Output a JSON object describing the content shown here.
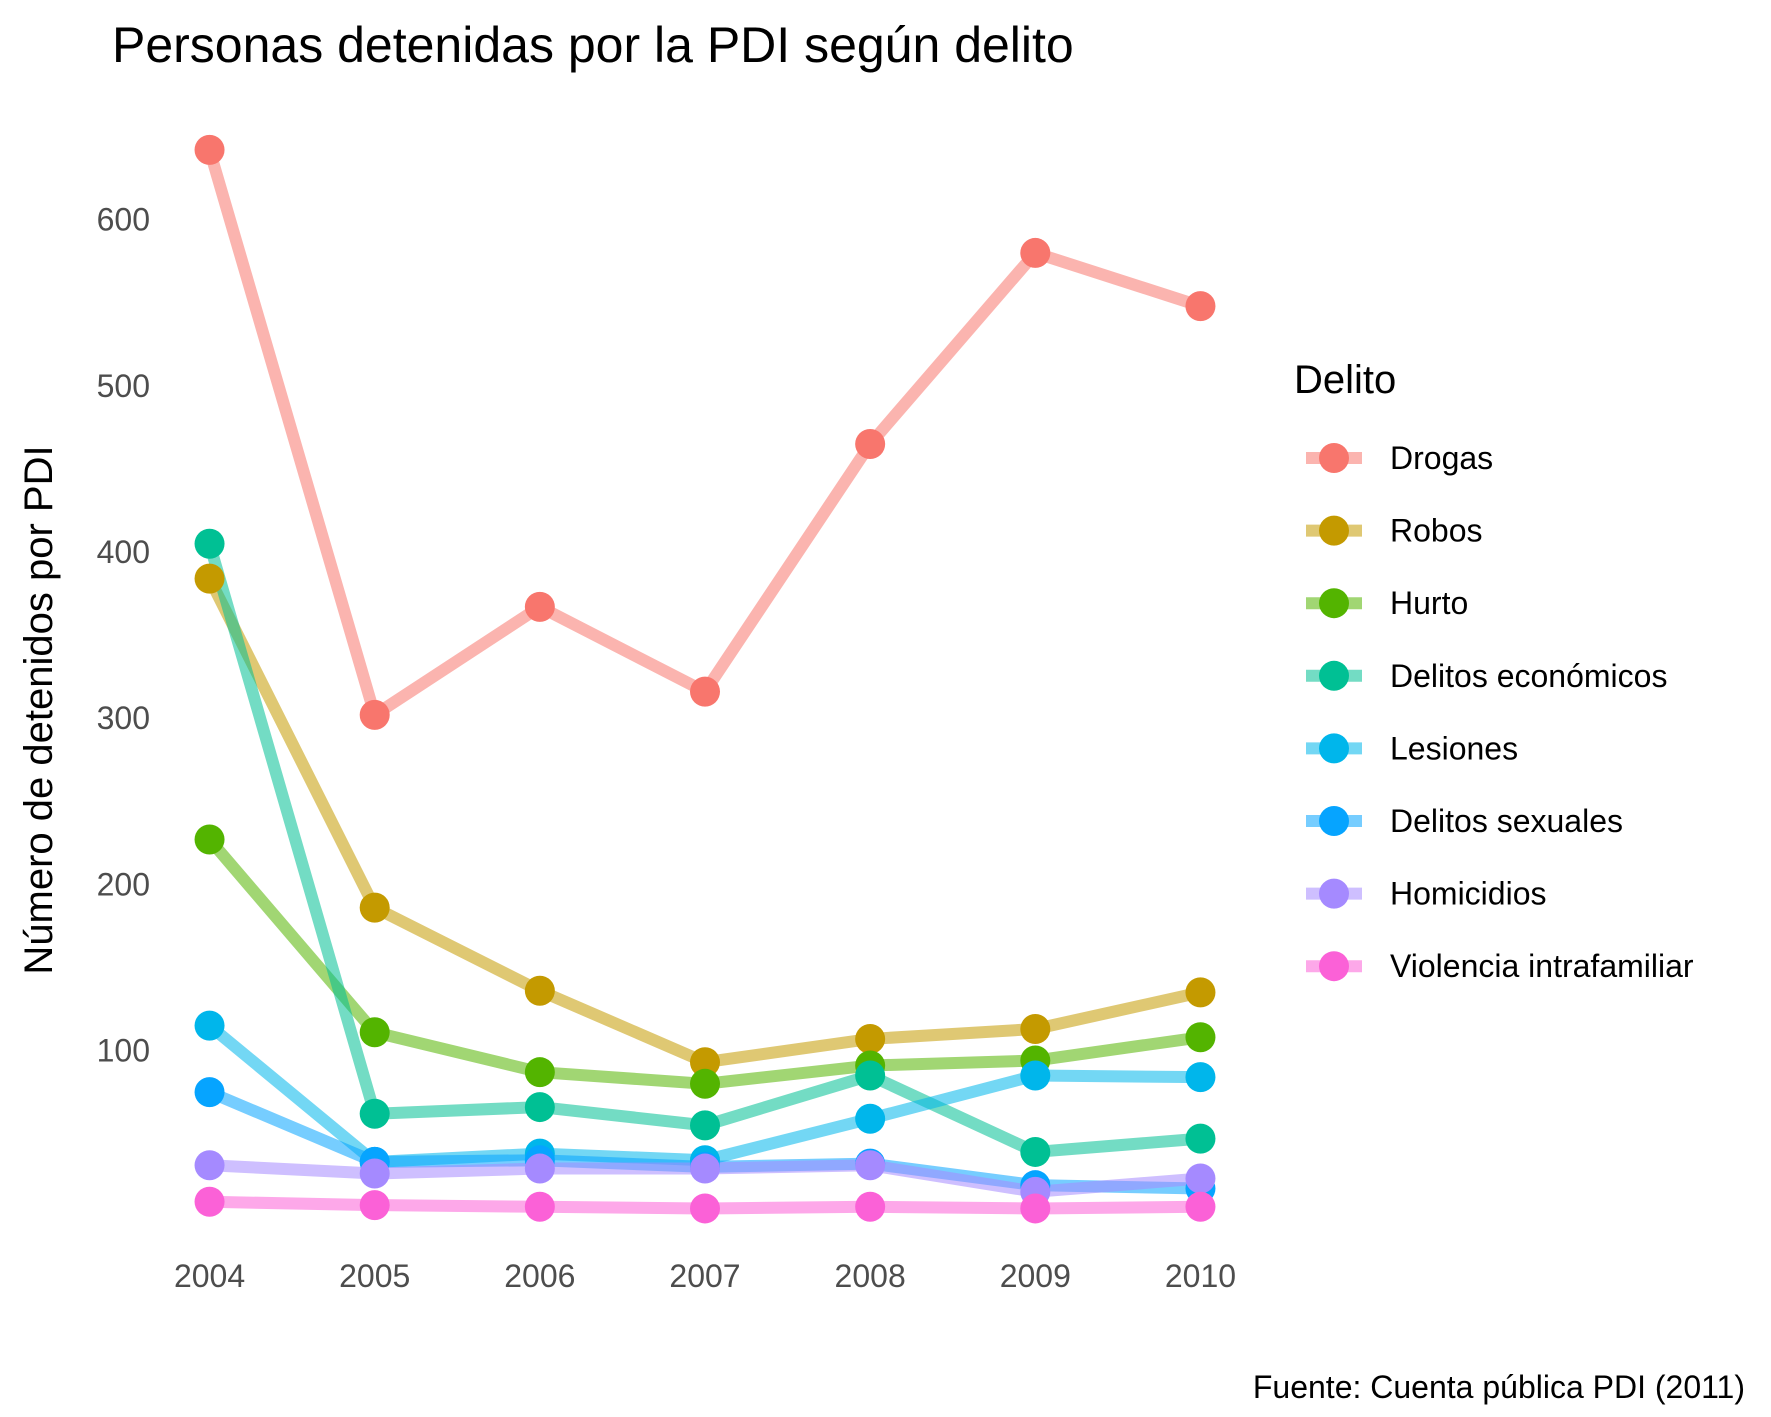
{
  "chart_data": {
    "type": "line",
    "title": "Personas detenidas por la PDI según delito",
    "xlabel": "",
    "ylabel": "Número de detenidos por PDI",
    "caption": "Fuente: Cuenta pública PDI (2011)",
    "x": [
      2004,
      2005,
      2006,
      2007,
      2008,
      2009,
      2010
    ],
    "x_tick_labels": [
      "2004",
      "2005",
      "2006",
      "2007",
      "2008",
      "2009",
      "2010"
    ],
    "y_ticks": [
      100,
      200,
      300,
      400,
      500,
      600
    ],
    "y_tick_labels": [
      "100",
      "200",
      "300",
      "400",
      "500",
      "600"
    ],
    "ylim": [
      -17,
      663
    ],
    "grid": false,
    "legend": {
      "title": "Delito",
      "position": "right"
    },
    "series": [
      {
        "name": "Drogas",
        "color": "#F8766D",
        "values": [
          642,
          302,
          367,
          316,
          465,
          580,
          548
        ]
      },
      {
        "name": "Robos",
        "color": "#C49A00",
        "values": [
          384,
          186,
          136,
          93,
          107,
          113,
          135
        ]
      },
      {
        "name": "Hurto",
        "color": "#53B400",
        "values": [
          227,
          111,
          87,
          80,
          91,
          94,
          108
        ]
      },
      {
        "name": "Delitos económicos",
        "color": "#00C094",
        "values": [
          405,
          62,
          66,
          55,
          85,
          39,
          47
        ]
      },
      {
        "name": "Lesiones",
        "color": "#00B6EB",
        "values": [
          115,
          33,
          38,
          34,
          59,
          85,
          84
        ]
      },
      {
        "name": "Delitos sexuales",
        "color": "#06A4FF",
        "values": [
          75,
          33,
          34,
          30,
          32,
          19,
          17
        ]
      },
      {
        "name": "Homicidios",
        "color": "#A58AFF",
        "values": [
          31,
          26,
          29,
          29,
          31,
          15,
          23
        ]
      },
      {
        "name": "Violencia intrafamiliar",
        "color": "#FB61D7",
        "values": [
          9,
          7,
          6,
          5,
          6,
          5,
          6
        ]
      }
    ]
  }
}
